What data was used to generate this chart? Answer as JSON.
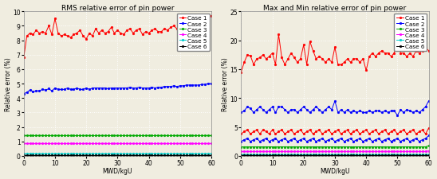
{
  "title_left": "RMS relative error of pin power",
  "title_right": "Max and Min relative error of pin power",
  "xlabel": "MWD/kgU",
  "ylabel": "Relative error (%)",
  "xlim": [
    0,
    60
  ],
  "ylim_left": [
    0,
    10
  ],
  "ylim_right": [
    0,
    25
  ],
  "yticks_left": [
    0,
    1,
    2,
    3,
    4,
    5,
    6,
    7,
    8,
    9,
    10
  ],
  "yticks_right": [
    0,
    5,
    10,
    15,
    20,
    25
  ],
  "xticks": [
    0,
    10,
    20,
    30,
    40,
    50,
    60
  ],
  "legend_labels": [
    "Case 1",
    "Case 2",
    "Case 3",
    "Case 4",
    "Case 5",
    "Case 6"
  ],
  "colors": [
    "#ff0000",
    "#0000ff",
    "#00aa00",
    "#ff00ff",
    "#00cccc",
    "#000000"
  ],
  "bg_color": "#f0ede0",
  "grid_color": "#ffffff",
  "markersize": 2.0,
  "linewidth": 0.7,
  "title_fontsize": 6.5,
  "label_fontsize": 5.5,
  "tick_fontsize": 5.5,
  "legend_fontsize": 5.2,
  "rms_case1": [
    6.8,
    8.3,
    8.5,
    8.4,
    8.7,
    8.5,
    8.6,
    8.5,
    9.0,
    8.4,
    9.5,
    8.5,
    8.3,
    8.4,
    8.3,
    8.2,
    8.4,
    8.5,
    8.7,
    8.3,
    8.1,
    8.5,
    8.3,
    8.8,
    8.5,
    8.7,
    8.5,
    8.6,
    8.9,
    8.5,
    8.7,
    8.5,
    8.4,
    8.7,
    8.8,
    8.5,
    8.7,
    8.8,
    8.4,
    8.6,
    8.5,
    8.7,
    8.8,
    8.6,
    8.6,
    8.8,
    8.7,
    8.9,
    9.0,
    8.8,
    9.0,
    8.9,
    9.0,
    9.0,
    9.1,
    9.2,
    9.3,
    9.4,
    9.5,
    9.6,
    9.7
  ],
  "rms_case2": [
    4.3,
    4.4,
    4.55,
    4.45,
    4.5,
    4.5,
    4.6,
    4.55,
    4.65,
    4.5,
    4.7,
    4.6,
    4.6,
    4.6,
    4.7,
    4.6,
    4.6,
    4.7,
    4.6,
    4.6,
    4.7,
    4.6,
    4.7,
    4.7,
    4.7,
    4.7,
    4.7,
    4.65,
    4.7,
    4.7,
    4.7,
    4.7,
    4.7,
    4.7,
    4.75,
    4.7,
    4.7,
    4.75,
    4.7,
    4.7,
    4.7,
    4.75,
    4.7,
    4.75,
    4.75,
    4.8,
    4.8,
    4.8,
    4.85,
    4.8,
    4.85,
    4.85,
    4.9,
    4.9,
    4.9,
    4.9,
    4.9,
    4.95,
    4.95,
    5.0,
    5.0
  ],
  "rms_case3": [
    1.4,
    1.4,
    1.4,
    1.4,
    1.4,
    1.4,
    1.4,
    1.4,
    1.4,
    1.4,
    1.4,
    1.4,
    1.4,
    1.4,
    1.4,
    1.4,
    1.4,
    1.4,
    1.4,
    1.4,
    1.4,
    1.4,
    1.4,
    1.4,
    1.4,
    1.4,
    1.4,
    1.4,
    1.4,
    1.4,
    1.4,
    1.4,
    1.4,
    1.4,
    1.4,
    1.4,
    1.4,
    1.4,
    1.4,
    1.4,
    1.4,
    1.4,
    1.4,
    1.4,
    1.4,
    1.4,
    1.4,
    1.4,
    1.4,
    1.4,
    1.4,
    1.4,
    1.4,
    1.4,
    1.4,
    1.4,
    1.4,
    1.4,
    1.4,
    1.4,
    1.4
  ],
  "rms_case4": [
    0.85,
    0.85,
    0.85,
    0.85,
    0.85,
    0.85,
    0.85,
    0.85,
    0.85,
    0.85,
    0.85,
    0.85,
    0.85,
    0.85,
    0.85,
    0.85,
    0.85,
    0.85,
    0.85,
    0.85,
    0.85,
    0.85,
    0.85,
    0.85,
    0.85,
    0.85,
    0.85,
    0.85,
    0.85,
    0.85,
    0.85,
    0.85,
    0.85,
    0.85,
    0.85,
    0.85,
    0.85,
    0.85,
    0.85,
    0.85,
    0.85,
    0.85,
    0.85,
    0.85,
    0.85,
    0.85,
    0.85,
    0.85,
    0.85,
    0.85,
    0.85,
    0.85,
    0.85,
    0.85,
    0.85,
    0.85,
    0.85,
    0.85,
    0.85,
    0.85,
    0.85
  ],
  "rms_case5": [
    0.18,
    0.18,
    0.18,
    0.18,
    0.18,
    0.18,
    0.18,
    0.18,
    0.18,
    0.18,
    0.18,
    0.18,
    0.18,
    0.18,
    0.18,
    0.18,
    0.18,
    0.18,
    0.18,
    0.18,
    0.18,
    0.18,
    0.18,
    0.18,
    0.18,
    0.18,
    0.18,
    0.18,
    0.18,
    0.18,
    0.18,
    0.18,
    0.18,
    0.18,
    0.18,
    0.18,
    0.18,
    0.18,
    0.18,
    0.18,
    0.18,
    0.18,
    0.18,
    0.18,
    0.18,
    0.18,
    0.18,
    0.18,
    0.18,
    0.18,
    0.18,
    0.18,
    0.18,
    0.18,
    0.18,
    0.18,
    0.18,
    0.18,
    0.18,
    0.18,
    0.18
  ],
  "rms_case6": [
    0.05,
    0.05,
    0.05,
    0.05,
    0.05,
    0.05,
    0.05,
    0.05,
    0.05,
    0.05,
    0.05,
    0.05,
    0.05,
    0.05,
    0.05,
    0.05,
    0.05,
    0.05,
    0.05,
    0.05,
    0.05,
    0.05,
    0.05,
    0.05,
    0.05,
    0.05,
    0.05,
    0.05,
    0.05,
    0.05,
    0.05,
    0.05,
    0.05,
    0.05,
    0.05,
    0.05,
    0.05,
    0.05,
    0.05,
    0.05,
    0.05,
    0.05,
    0.05,
    0.05,
    0.05,
    0.05,
    0.05,
    0.05,
    0.05,
    0.05,
    0.05,
    0.05,
    0.05,
    0.05,
    0.05,
    0.05,
    0.05,
    0.05,
    0.05,
    0.05,
    0.05
  ],
  "mm_c1_max": [
    14.5,
    16.2,
    17.5,
    17.3,
    15.8,
    16.8,
    17.0,
    17.5,
    16.8,
    17.2,
    17.8,
    15.8,
    21.0,
    17.0,
    15.8,
    16.8,
    17.8,
    17.0,
    16.2,
    16.8,
    19.2,
    15.8,
    19.8,
    18.2,
    16.8,
    17.2,
    16.8,
    16.2,
    16.8,
    16.2,
    18.8,
    15.8,
    15.8,
    16.2,
    16.8,
    16.2,
    16.8,
    16.8,
    16.2,
    16.8,
    14.8,
    17.2,
    17.8,
    17.2,
    17.8,
    18.2,
    17.8,
    17.8,
    17.2,
    17.8,
    20.8,
    17.8,
    17.8,
    17.2,
    17.8,
    17.2,
    18.2,
    17.8,
    18.2,
    18.8,
    18.2
  ],
  "mm_c1_min": [
    3.8,
    4.2,
    4.5,
    3.8,
    4.2,
    4.5,
    3.8,
    4.5,
    4.2,
    3.8,
    4.5,
    3.8,
    4.2,
    4.5,
    3.8,
    4.2,
    4.5,
    3.8,
    4.2,
    4.5,
    3.8,
    4.2,
    4.5,
    3.8,
    4.2,
    4.5,
    3.8,
    4.2,
    4.5,
    3.8,
    4.2,
    4.5,
    3.8,
    4.2,
    4.5,
    3.8,
    4.2,
    4.5,
    3.8,
    4.2,
    4.5,
    3.8,
    4.2,
    4.5,
    3.8,
    4.2,
    4.5,
    3.8,
    4.2,
    4.5,
    3.8,
    4.2,
    4.5,
    3.8,
    4.2,
    4.5,
    3.8,
    4.2,
    4.5,
    3.8,
    4.8
  ],
  "mm_c2_max": [
    7.5,
    7.8,
    8.5,
    8.2,
    7.5,
    8.0,
    8.5,
    8.0,
    7.5,
    8.0,
    8.5,
    7.5,
    8.5,
    8.5,
    8.0,
    7.5,
    8.0,
    8.0,
    7.5,
    8.0,
    8.5,
    8.0,
    7.5,
    8.0,
    8.5,
    8.0,
    7.5,
    8.0,
    8.5,
    8.0,
    9.5,
    7.5,
    8.0,
    7.5,
    8.0,
    7.5,
    7.8,
    7.5,
    7.8,
    7.5,
    7.5,
    7.8,
    7.5,
    7.8,
    7.8,
    7.5,
    7.8,
    7.5,
    7.8,
    7.8,
    7.0,
    8.0,
    7.5,
    8.0,
    7.8,
    7.5,
    7.8,
    7.5,
    8.0,
    8.5,
    9.5
  ],
  "mm_c2_min": [
    2.5,
    2.8,
    3.0,
    2.5,
    2.8,
    3.0,
    2.5,
    2.8,
    3.0,
    2.5,
    2.8,
    3.0,
    2.5,
    2.8,
    3.0,
    2.5,
    2.8,
    3.0,
    2.5,
    2.8,
    3.0,
    2.5,
    2.8,
    3.0,
    2.5,
    2.8,
    3.0,
    2.5,
    2.8,
    3.0,
    2.5,
    2.8,
    3.0,
    2.5,
    2.8,
    3.0,
    2.5,
    2.8,
    3.0,
    2.5,
    2.8,
    3.0,
    2.5,
    2.8,
    3.0,
    2.5,
    2.8,
    3.0,
    2.5,
    2.8,
    3.0,
    2.5,
    2.8,
    3.0,
    2.5,
    2.8,
    3.0,
    2.5,
    2.8,
    3.0,
    3.5
  ],
  "mm_c3": [
    1.55,
    1.55,
    1.55,
    1.55,
    1.55,
    1.55,
    1.55,
    1.55,
    1.55,
    1.55,
    1.55,
    1.55,
    1.55,
    1.55,
    1.55,
    1.55,
    1.55,
    1.55,
    1.55,
    1.55,
    1.55,
    1.55,
    1.55,
    1.55,
    1.55,
    1.55,
    1.55,
    1.55,
    1.55,
    1.55,
    1.55,
    1.55,
    1.55,
    1.55,
    1.55,
    1.55,
    1.55,
    1.55,
    1.55,
    1.55,
    1.55,
    1.55,
    1.55,
    1.55,
    1.55,
    1.55,
    1.55,
    1.55,
    1.55,
    1.55,
    1.55,
    1.55,
    1.55,
    1.55,
    1.55,
    1.55,
    1.55,
    1.55,
    1.55,
    1.55,
    1.75
  ],
  "mm_c4": [
    0.75,
    0.75,
    0.75,
    0.75,
    0.75,
    0.75,
    0.75,
    0.75,
    0.75,
    0.75,
    0.75,
    0.75,
    0.75,
    0.75,
    0.75,
    0.75,
    0.75,
    0.75,
    0.75,
    0.75,
    0.75,
    0.75,
    0.75,
    0.75,
    0.75,
    0.75,
    0.75,
    0.75,
    0.75,
    0.75,
    0.75,
    0.75,
    0.75,
    0.75,
    0.75,
    0.75,
    0.75,
    0.75,
    0.75,
    0.75,
    0.75,
    0.75,
    0.75,
    0.75,
    0.75,
    0.75,
    0.75,
    0.75,
    0.75,
    0.75,
    0.75,
    0.75,
    0.75,
    0.75,
    0.75,
    0.75,
    0.75,
    0.75,
    0.75,
    0.75,
    0.85
  ],
  "mm_c5": [
    0.25,
    0.25,
    0.25,
    0.25,
    0.25,
    0.25,
    0.25,
    0.25,
    0.25,
    0.25,
    0.25,
    0.25,
    0.25,
    0.25,
    0.25,
    0.25,
    0.25,
    0.25,
    0.25,
    0.25,
    0.25,
    0.25,
    0.25,
    0.25,
    0.25,
    0.25,
    0.25,
    0.25,
    0.25,
    0.25,
    0.25,
    0.25,
    0.25,
    0.25,
    0.25,
    0.25,
    0.25,
    0.25,
    0.25,
    0.25,
    0.25,
    0.25,
    0.25,
    0.25,
    0.25,
    0.25,
    0.25,
    0.25,
    0.25,
    0.25,
    0.25,
    0.25,
    0.25,
    0.25,
    0.25,
    0.25,
    0.25,
    0.25,
    0.25,
    0.25,
    0.25
  ],
  "mm_c6": [
    0.08,
    0.08,
    0.08,
    0.08,
    0.08,
    0.08,
    0.08,
    0.08,
    0.08,
    0.08,
    0.08,
    0.08,
    0.08,
    0.08,
    0.08,
    0.08,
    0.08,
    0.08,
    0.08,
    0.08,
    0.08,
    0.08,
    0.08,
    0.08,
    0.08,
    0.08,
    0.08,
    0.08,
    0.08,
    0.08,
    0.08,
    0.08,
    0.08,
    0.08,
    0.08,
    0.08,
    0.08,
    0.08,
    0.08,
    0.08,
    0.08,
    0.08,
    0.08,
    0.08,
    0.08,
    0.08,
    0.08,
    0.08,
    0.08,
    0.08,
    0.08,
    0.08,
    0.08,
    0.08,
    0.08,
    0.08,
    0.08,
    0.08,
    0.08,
    0.08,
    0.08
  ]
}
